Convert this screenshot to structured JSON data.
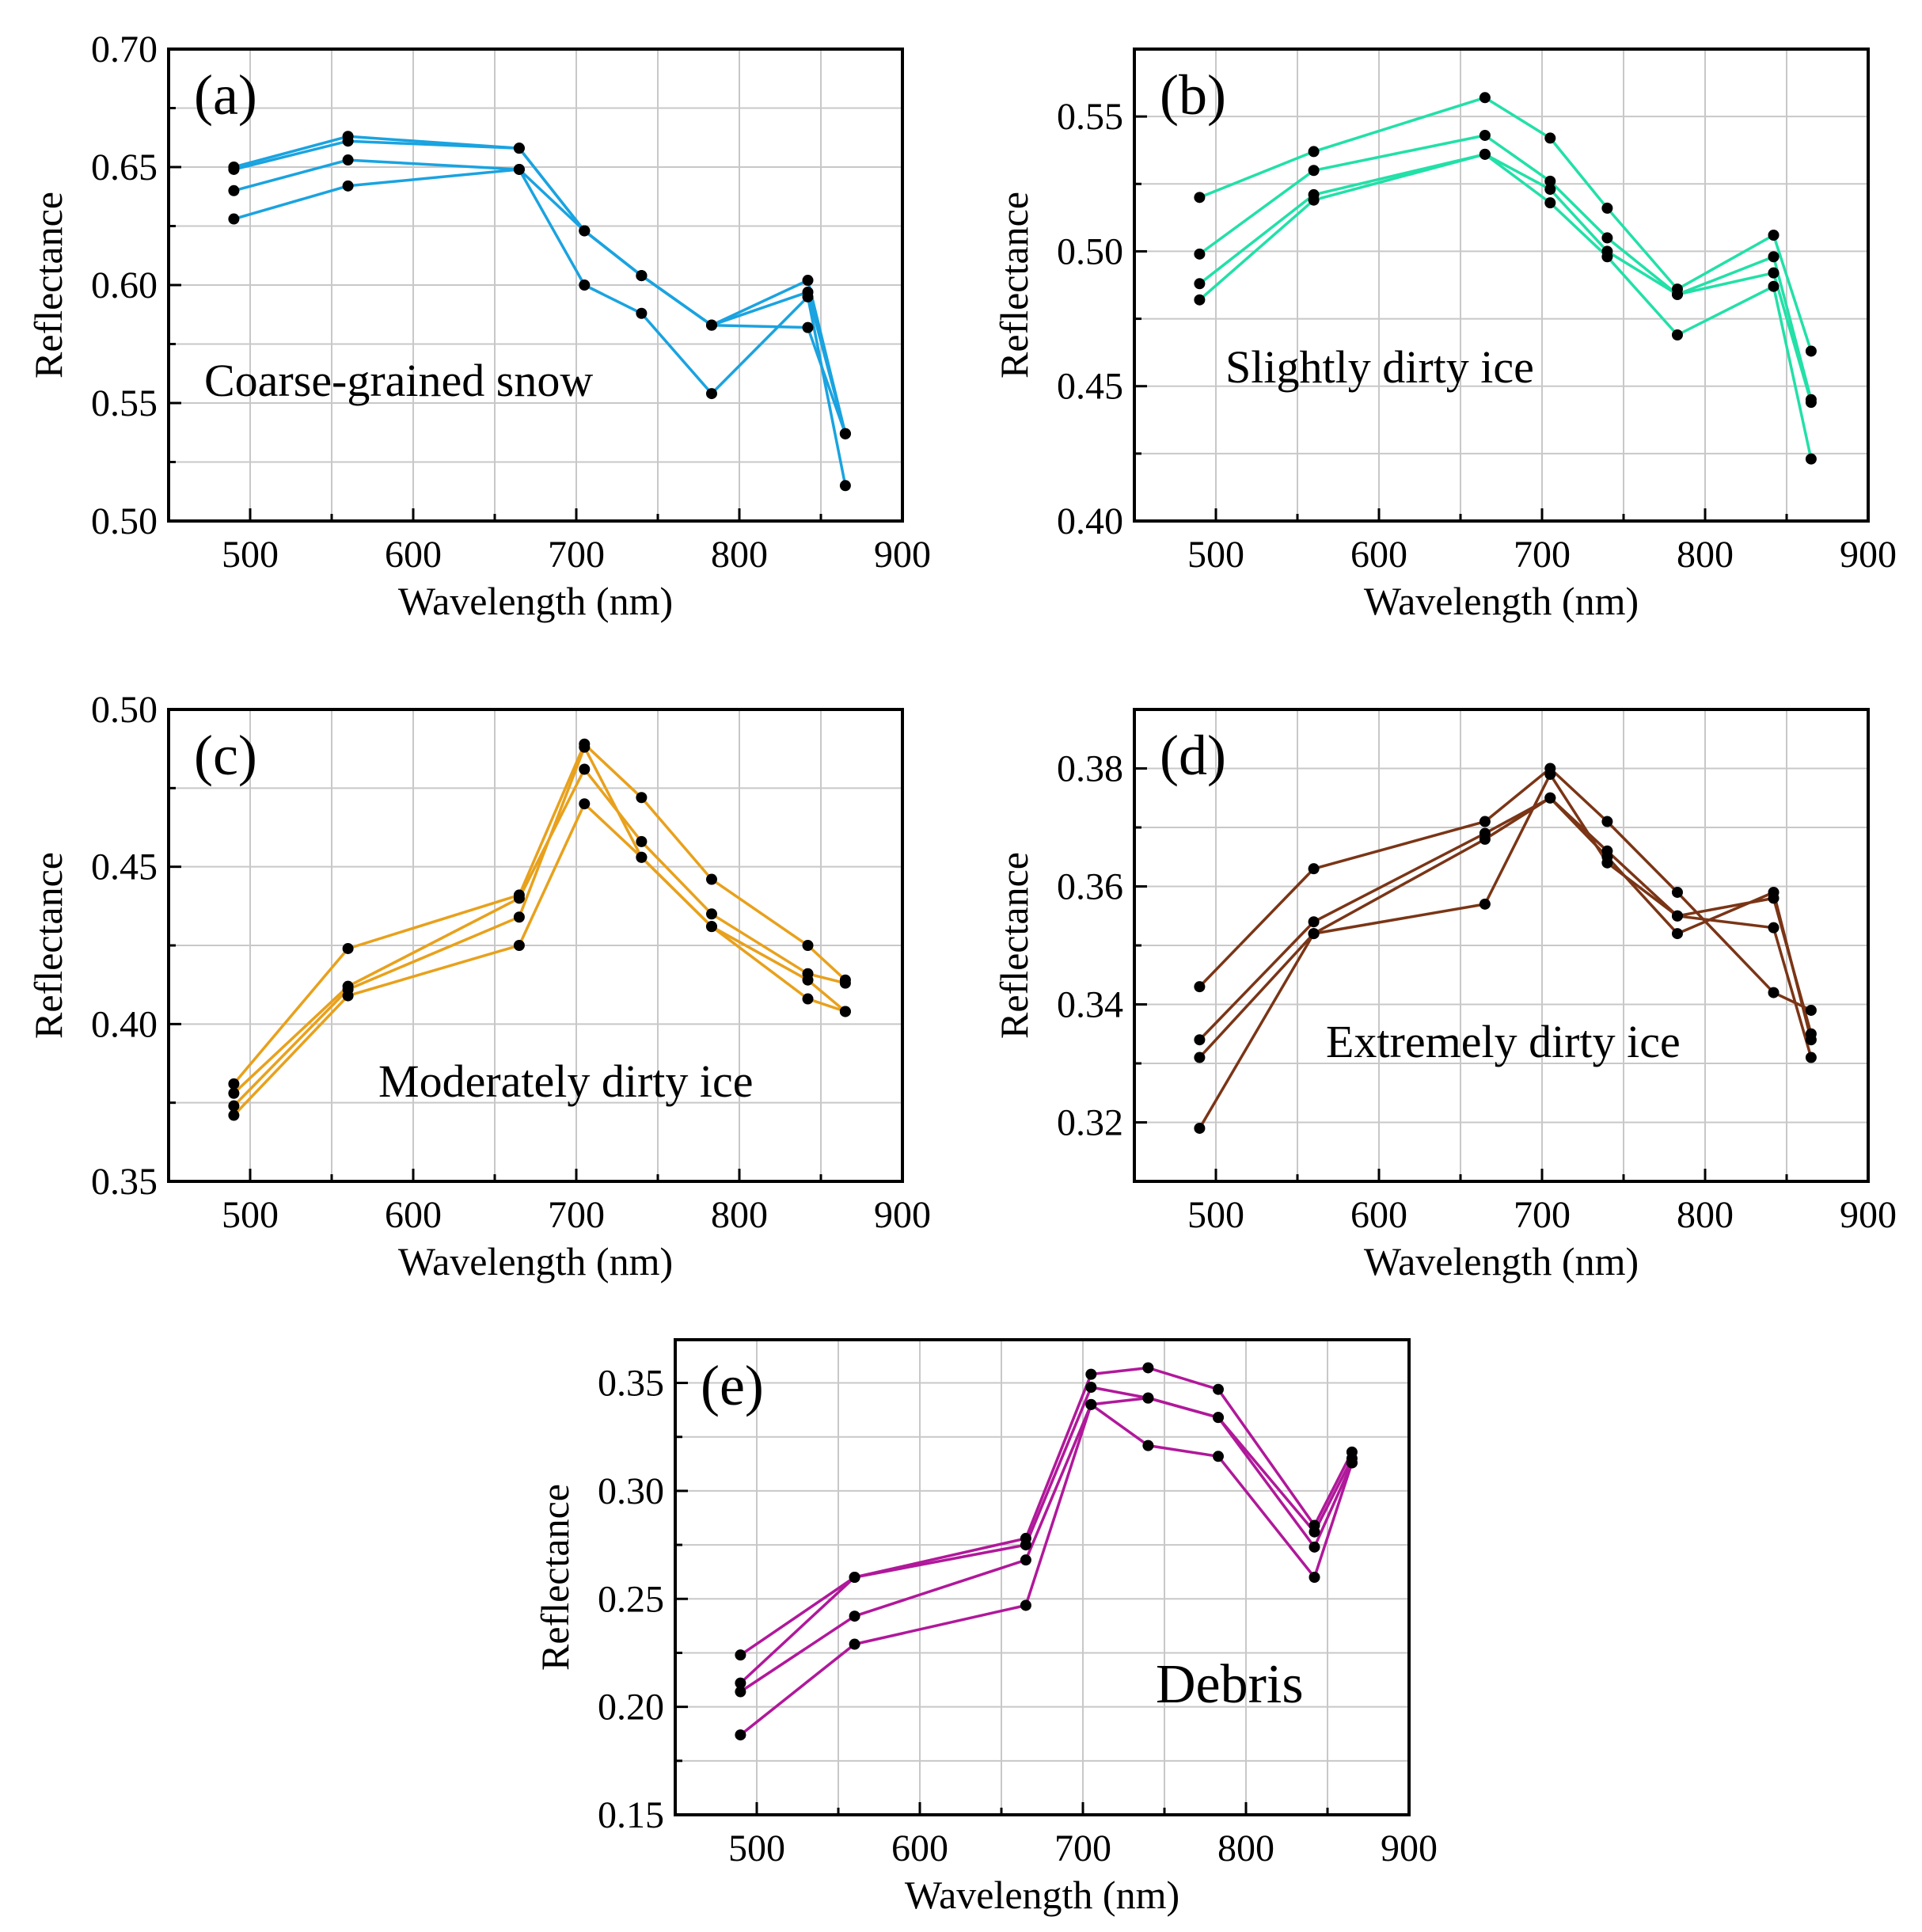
{
  "chart_data": [
    {
      "type": "line",
      "panel_label": "(a)",
      "annotation": "Coarse-grained snow",
      "color": "#1aa3e0",
      "xlabel": "Wavelength (nm)",
      "ylabel": "Reflectance",
      "xlim": [
        450,
        900
      ],
      "ylim": [
        0.5,
        0.7
      ],
      "xticks": [
        500,
        600,
        700,
        800,
        900
      ],
      "xtick_labels": [
        "500",
        "600",
        "700",
        "800",
        "900"
      ],
      "yticks": [
        0.5,
        0.55,
        0.6,
        0.65,
        0.7
      ],
      "ytick_labels": [
        "0.50",
        "0.55",
        "0.60",
        "0.65",
        "0.70"
      ],
      "x": [
        490,
        560,
        665,
        705,
        740,
        783,
        842,
        865
      ],
      "series": [
        {
          "name": "1",
          "values": [
            0.65,
            0.663,
            0.658,
            0.623,
            0.604,
            0.583,
            0.602,
            0.537
          ]
        },
        {
          "name": "2",
          "values": [
            0.649,
            0.661,
            0.658,
            0.623,
            0.604,
            0.583,
            0.597,
            0.537
          ]
        },
        {
          "name": "3",
          "values": [
            0.64,
            0.653,
            0.649,
            0.6,
            0.588,
            0.554,
            0.595,
            0.515
          ]
        },
        {
          "name": "4",
          "values": [
            0.628,
            0.642,
            0.649,
            0.623,
            0.604,
            0.583,
            0.582,
            0.537
          ]
        }
      ]
    },
    {
      "type": "line",
      "panel_label": "(b)",
      "annotation": "Slightly dirty ice",
      "color": "#22e0a8",
      "xlabel": "Wavelength (nm)",
      "ylabel": "Reflectance",
      "xlim": [
        450,
        900
      ],
      "ylim": [
        0.4,
        0.575
      ],
      "xticks": [
        500,
        600,
        700,
        800,
        900
      ],
      "xtick_labels": [
        "500",
        "600",
        "700",
        "800",
        "900"
      ],
      "yticks": [
        0.4,
        0.45,
        0.5,
        0.55
      ],
      "ytick_labels": [
        "0.40",
        "0.45",
        "0.50",
        "0.55"
      ],
      "x": [
        490,
        560,
        665,
        705,
        740,
        783,
        842,
        865
      ],
      "series": [
        {
          "name": "1",
          "values": [
            0.52,
            0.537,
            0.557,
            0.542,
            0.516,
            0.486,
            0.506,
            0.463
          ]
        },
        {
          "name": "2",
          "values": [
            0.499,
            0.53,
            0.543,
            0.526,
            0.505,
            0.484,
            0.498,
            0.445
          ]
        },
        {
          "name": "3",
          "values": [
            0.488,
            0.521,
            0.536,
            0.523,
            0.5,
            0.484,
            0.492,
            0.444
          ]
        },
        {
          "name": "4",
          "values": [
            0.482,
            0.519,
            0.536,
            0.518,
            0.498,
            0.469,
            0.487,
            0.423
          ]
        }
      ]
    },
    {
      "type": "line",
      "panel_label": "(c)",
      "annotation": "Moderately dirty ice",
      "color": "#e8a11c",
      "xlabel": "Wavelength (nm)",
      "ylabel": "Reflectance",
      "xlim": [
        450,
        900
      ],
      "ylim": [
        0.35,
        0.5
      ],
      "xticks": [
        500,
        600,
        700,
        800,
        900
      ],
      "xtick_labels": [
        "500",
        "600",
        "700",
        "800",
        "900"
      ],
      "yticks": [
        0.35,
        0.4,
        0.45,
        0.5
      ],
      "ytick_labels": [
        "0.35",
        "0.40",
        "0.45",
        "0.50"
      ],
      "x": [
        490,
        560,
        665,
        705,
        740,
        783,
        842,
        865
      ],
      "series": [
        {
          "name": "1",
          "values": [
            0.381,
            0.424,
            0.441,
            0.489,
            0.472,
            0.446,
            0.425,
            0.414
          ]
        },
        {
          "name": "2",
          "values": [
            0.378,
            0.412,
            0.44,
            0.481,
            0.458,
            0.435,
            0.416,
            0.413
          ]
        },
        {
          "name": "3",
          "values": [
            0.374,
            0.411,
            0.434,
            0.488,
            0.453,
            0.431,
            0.414,
            0.404
          ]
        },
        {
          "name": "4",
          "values": [
            0.371,
            0.409,
            0.425,
            0.47,
            0.453,
            0.431,
            0.408,
            0.404
          ]
        }
      ]
    },
    {
      "type": "line",
      "panel_label": "(d)",
      "annotation": "Extremely dirty ice",
      "color": "#7a3516",
      "xlabel": "Wavelength (nm)",
      "ylabel": "Reflectance",
      "xlim": [
        450,
        900
      ],
      "ylim": [
        0.31,
        0.39
      ],
      "xticks": [
        500,
        600,
        700,
        800,
        900
      ],
      "xtick_labels": [
        "500",
        "600",
        "700",
        "800",
        "900"
      ],
      "yticks": [
        0.32,
        0.34,
        0.36,
        0.38
      ],
      "ytick_labels": [
        "0.32",
        "0.34",
        "0.36",
        "0.38"
      ],
      "x": [
        490,
        560,
        665,
        705,
        740,
        783,
        842,
        865
      ],
      "series": [
        {
          "name": "1",
          "values": [
            0.343,
            0.363,
            0.371,
            0.38,
            0.371,
            0.359,
            0.342,
            0.339
          ]
        },
        {
          "name": "2",
          "values": [
            0.334,
            0.354,
            0.369,
            0.375,
            0.366,
            0.355,
            0.358,
            0.335
          ]
        },
        {
          "name": "3",
          "values": [
            0.331,
            0.352,
            0.368,
            0.375,
            0.365,
            0.352,
            0.359,
            0.334
          ]
        },
        {
          "name": "4",
          "values": [
            0.319,
            0.352,
            0.357,
            0.379,
            0.364,
            0.355,
            0.353,
            0.331
          ]
        }
      ]
    },
    {
      "type": "line",
      "panel_label": "(e)",
      "annotation": "Debris",
      "color": "#b0189a",
      "xlabel": "Wavelength (nm)",
      "ylabel": "Reflectance",
      "xlim": [
        450,
        900
      ],
      "ylim": [
        0.15,
        0.37
      ],
      "xticks": [
        500,
        600,
        700,
        800,
        900
      ],
      "xtick_labels": [
        "500",
        "600",
        "700",
        "800",
        "900"
      ],
      "yticks": [
        0.15,
        0.2,
        0.25,
        0.3,
        0.35
      ],
      "ytick_labels": [
        "0.15",
        "0.20",
        "0.25",
        "0.30",
        "0.35"
      ],
      "x": [
        490,
        560,
        665,
        705,
        740,
        783,
        842,
        865
      ],
      "series": [
        {
          "name": "1",
          "values": [
            0.224,
            0.26,
            0.278,
            0.354,
            0.357,
            0.347,
            0.284,
            0.318
          ]
        },
        {
          "name": "2",
          "values": [
            0.211,
            0.26,
            0.275,
            0.348,
            0.343,
            0.334,
            0.281,
            0.315
          ]
        },
        {
          "name": "3",
          "values": [
            0.207,
            0.242,
            0.268,
            0.34,
            0.343,
            0.334,
            0.274,
            0.313
          ]
        },
        {
          "name": "4",
          "values": [
            0.187,
            0.229,
            0.247,
            0.34,
            0.321,
            0.316,
            0.26,
            0.313
          ]
        }
      ]
    }
  ]
}
